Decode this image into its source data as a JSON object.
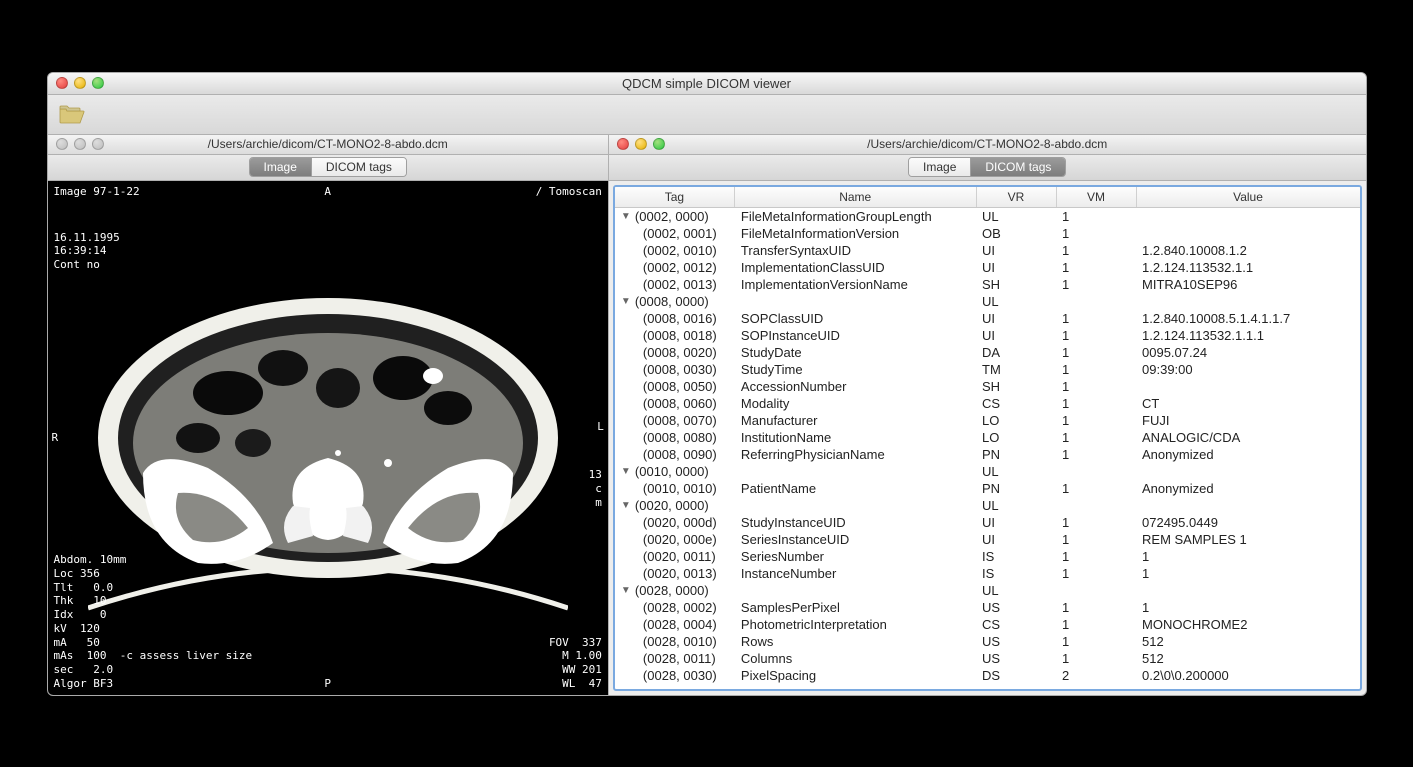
{
  "window": {
    "title": "QDCM simple DICOM viewer"
  },
  "toolbar": {
    "open_icon": "folder-open"
  },
  "pane_left": {
    "path": "/Users/archie/dicom/CT-MONO2-8-abdo.dcm",
    "tabs": {
      "image": "Image",
      "tags": "DICOM tags",
      "active": "image"
    },
    "overlay": {
      "top_left": "Image 97-1-22",
      "top_center": "A",
      "top_right": "/ Tomoscan",
      "date_block": "16.11.1995\n16:39:14\nCont no",
      "left": "R",
      "right": "L",
      "right_block": "13\nc\nm",
      "bottom_left": "Abdom. 10mm\nLoc 356\nTlt   0.0\nThk   10\nIdx    0\nkV  120\nmA   50\nmAs  100  -c assess liver size\nsec   2.0\nAlgor BF3",
      "bottom_center": "P",
      "bottom_right": "FOV  337\nM 1.00\nWW 201\nWL  47"
    },
    "ct_scan_style": {
      "viewer_bg": "#000000",
      "body_outline": "#f7f7f2",
      "soft_tissue": "#7f7f7a",
      "bone": "#ffffff",
      "air": "#000000"
    }
  },
  "pane_right": {
    "path": "/Users/archie/dicom/CT-MONO2-8-abdo.dcm",
    "tabs": {
      "image": "Image",
      "tags": "DICOM tags",
      "active": "tags"
    },
    "columns": [
      "Tag",
      "Name",
      "VR",
      "VM",
      "Value"
    ]
  },
  "dicom_tags": [
    {
      "group": true,
      "tag": "(0002, 0000)",
      "name": "FileMetaInformationGroupLength",
      "vr": "UL",
      "vm": "1",
      "value": ""
    },
    {
      "tag": "(0002, 0001)",
      "name": "FileMetaInformationVersion",
      "vr": "OB",
      "vm": "1",
      "value": ""
    },
    {
      "tag": "(0002, 0010)",
      "name": "TransferSyntaxUID",
      "vr": "UI",
      "vm": "1",
      "value": "1.2.840.10008.1.2"
    },
    {
      "tag": "(0002, 0012)",
      "name": "ImplementationClassUID",
      "vr": "UI",
      "vm": "1",
      "value": "1.2.124.113532.1.1"
    },
    {
      "tag": "(0002, 0013)",
      "name": "ImplementationVersionName",
      "vr": "SH",
      "vm": "1",
      "value": "MITRA10SEP96"
    },
    {
      "group": true,
      "tag": "(0008, 0000)",
      "name": "",
      "vr": "UL",
      "vm": "",
      "value": ""
    },
    {
      "tag": "(0008, 0016)",
      "name": "SOPClassUID",
      "vr": "UI",
      "vm": "1",
      "value": "1.2.840.10008.5.1.4.1.1.7"
    },
    {
      "tag": "(0008, 0018)",
      "name": "SOPInstanceUID",
      "vr": "UI",
      "vm": "1",
      "value": "1.2.124.113532.1.1.1"
    },
    {
      "tag": "(0008, 0020)",
      "name": "StudyDate",
      "vr": "DA",
      "vm": "1",
      "value": "0095.07.24"
    },
    {
      "tag": "(0008, 0030)",
      "name": "StudyTime",
      "vr": "TM",
      "vm": "1",
      "value": "09:39:00"
    },
    {
      "tag": "(0008, 0050)",
      "name": "AccessionNumber",
      "vr": "SH",
      "vm": "1",
      "value": ""
    },
    {
      "tag": "(0008, 0060)",
      "name": "Modality",
      "vr": "CS",
      "vm": "1",
      "value": "CT"
    },
    {
      "tag": "(0008, 0070)",
      "name": "Manufacturer",
      "vr": "LO",
      "vm": "1",
      "value": "FUJI"
    },
    {
      "tag": "(0008, 0080)",
      "name": "InstitutionName",
      "vr": "LO",
      "vm": "1",
      "value": "ANALOGIC/CDA"
    },
    {
      "tag": "(0008, 0090)",
      "name": "ReferringPhysicianName",
      "vr": "PN",
      "vm": "1",
      "value": "Anonymized"
    },
    {
      "group": true,
      "tag": "(0010, 0000)",
      "name": "",
      "vr": "UL",
      "vm": "",
      "value": ""
    },
    {
      "tag": "(0010, 0010)",
      "name": "PatientName",
      "vr": "PN",
      "vm": "1",
      "value": "Anonymized"
    },
    {
      "group": true,
      "tag": "(0020, 0000)",
      "name": "",
      "vr": "UL",
      "vm": "",
      "value": ""
    },
    {
      "tag": "(0020, 000d)",
      "name": "StudyInstanceUID",
      "vr": "UI",
      "vm": "1",
      "value": "072495.0449"
    },
    {
      "tag": "(0020, 000e)",
      "name": "SeriesInstanceUID",
      "vr": "UI",
      "vm": "1",
      "value": "REM SAMPLES 1"
    },
    {
      "tag": "(0020, 0011)",
      "name": "SeriesNumber",
      "vr": "IS",
      "vm": "1",
      "value": "1"
    },
    {
      "tag": "(0020, 0013)",
      "name": "InstanceNumber",
      "vr": "IS",
      "vm": "1",
      "value": "1"
    },
    {
      "group": true,
      "tag": "(0028, 0000)",
      "name": "",
      "vr": "UL",
      "vm": "",
      "value": ""
    },
    {
      "tag": "(0028, 0002)",
      "name": "SamplesPerPixel",
      "vr": "US",
      "vm": "1",
      "value": "1"
    },
    {
      "tag": "(0028, 0004)",
      "name": "PhotometricInterpretation",
      "vr": "CS",
      "vm": "1",
      "value": "MONOCHROME2"
    },
    {
      "tag": "(0028, 0010)",
      "name": "Rows",
      "vr": "US",
      "vm": "1",
      "value": "512"
    },
    {
      "tag": "(0028, 0011)",
      "name": "Columns",
      "vr": "US",
      "vm": "1",
      "value": "512"
    },
    {
      "tag": "(0028, 0030)",
      "name": "PixelSpacing",
      "vr": "DS",
      "vm": "2",
      "value": "0.2\\0\\0.200000"
    }
  ]
}
